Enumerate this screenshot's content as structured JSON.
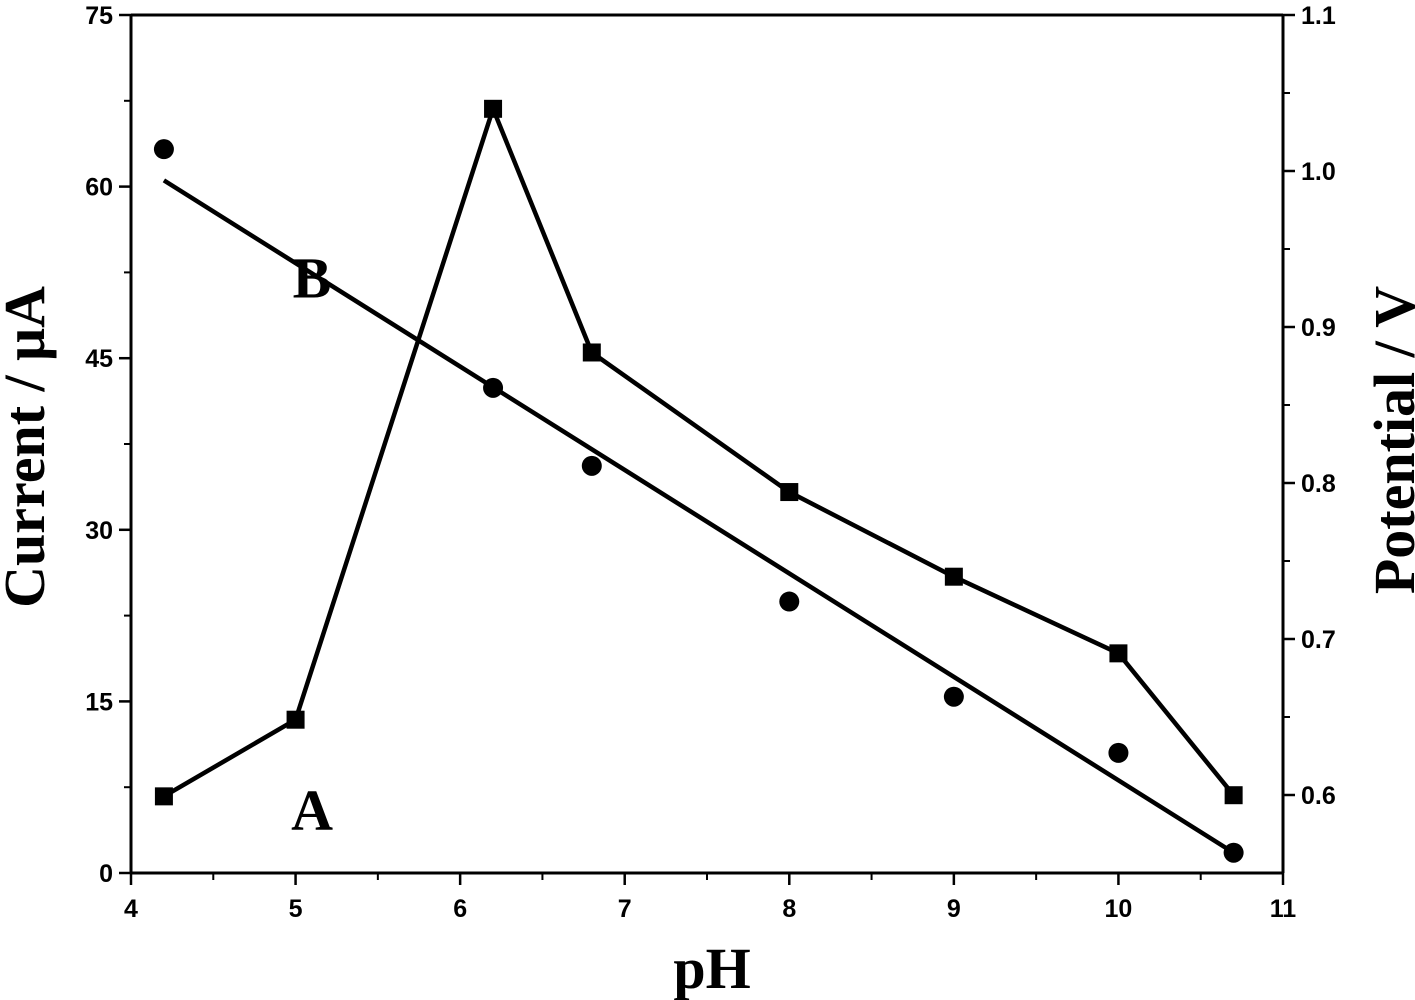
{
  "chart_data": {
    "type": "scatter",
    "xlabel": "pH",
    "ylabel_left": "Current / μA",
    "ylabel_right": "Potential / V",
    "xlim": [
      4,
      11
    ],
    "ylim_left": [
      0,
      75
    ],
    "ylim_right": [
      0.55,
      1.1
    ],
    "x_ticks": [
      4,
      5,
      6,
      7,
      8,
      9,
      10,
      11
    ],
    "y_ticks_left": [
      0,
      15,
      30,
      45,
      60,
      75
    ],
    "y_ticks_right": [
      0.6,
      0.7,
      0.8,
      0.9,
      1.0,
      1.1
    ],
    "x_tick_labels": [
      "4",
      "5",
      "6",
      "7",
      "8",
      "9",
      "10",
      "11"
    ],
    "y_tick_labels_left": [
      "0",
      "15",
      "30",
      "45",
      "60",
      "75"
    ],
    "y_tick_labels_right": [
      "0.6",
      "0.7",
      "0.8",
      "0.9",
      "1.0",
      "1.1"
    ],
    "grid": false,
    "series": [
      {
        "name": "A",
        "axis": "left",
        "marker": "square",
        "connected": true,
        "points": [
          {
            "x": 4.2,
            "y": 6.7
          },
          {
            "x": 5.0,
            "y": 13.4
          },
          {
            "x": 6.2,
            "y": 66.8
          },
          {
            "x": 6.8,
            "y": 45.5
          },
          {
            "x": 8.0,
            "y": 33.3
          },
          {
            "x": 9.0,
            "y": 25.9
          },
          {
            "x": 10.0,
            "y": 19.2
          },
          {
            "x": 10.7,
            "y": 6.8
          }
        ]
      },
      {
        "name": "B",
        "axis": "right",
        "marker": "circle",
        "connected": false,
        "fit_line": [
          {
            "x": 4.2,
            "y": 0.994
          },
          {
            "x": 10.7,
            "y": 0.563
          }
        ],
        "points": [
          {
            "x": 4.2,
            "y": 1.014
          },
          {
            "x": 6.2,
            "y": 0.861
          },
          {
            "x": 6.8,
            "y": 0.811
          },
          {
            "x": 8.0,
            "y": 0.724
          },
          {
            "x": 9.0,
            "y": 0.663
          },
          {
            "x": 10.0,
            "y": 0.627
          },
          {
            "x": 10.7,
            "y": 0.563
          }
        ]
      }
    ],
    "annotations": [
      {
        "text": "A",
        "x": 5.1,
        "y_left": 3.8
      },
      {
        "text": "B",
        "x": 5.1,
        "y_left": 50.3
      }
    ],
    "colors": {
      "line": "#000000",
      "marker": "#000000",
      "background": "#ffffff"
    }
  }
}
